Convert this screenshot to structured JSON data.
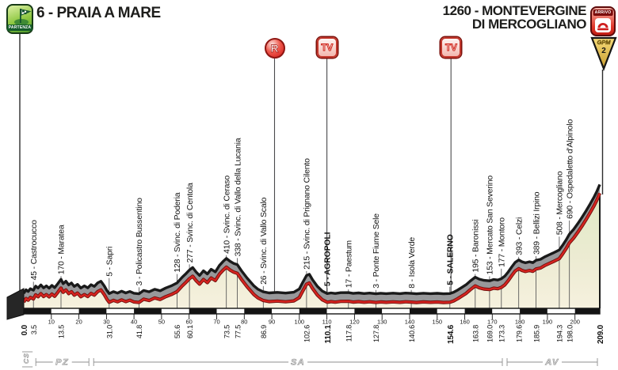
{
  "header": {
    "start": {
      "stage_ref": "6 - PRAIA A MARE",
      "badge": "PARTENZA"
    },
    "finish": {
      "title_line1": "1260 - MONTEVERGINE",
      "title_line2": "DI MERCOGLIANO",
      "badge": "ARRIVO"
    },
    "gpm_badge": {
      "label": "GPM",
      "category": "2"
    }
  },
  "route_markers": [
    {
      "type": "feed_zone",
      "label": "R",
      "km": 91
    },
    {
      "type": "tv",
      "label": "TV",
      "km": 110
    },
    {
      "type": "tv",
      "label": "TV",
      "km": 155
    }
  ],
  "colors": {
    "profile_red": "#d6231f",
    "profile_red_outline": "#6d100d",
    "band_gray": "#98989a",
    "outline_black": "#1a1a1a",
    "fill_cream": "#f6f1de",
    "fill_green_high": "#dfeac5",
    "leader_line": "#4a4a4c",
    "province_gray": "#8f8f8f",
    "start_green": "#5fae3a",
    "finish_red": "#d8261f",
    "gpm_gold": "#e8c24a"
  },
  "chart_data": {
    "type": "area",
    "x_unit": "km",
    "xlim": [
      0,
      209
    ],
    "total_km_text": "209.0",
    "finish_elevation_m": 1260,
    "axis_ticks_km": [
      10,
      20,
      30,
      40,
      50,
      60,
      70,
      80,
      90,
      100,
      110,
      120,
      130,
      140,
      150,
      160,
      170,
      180,
      190,
      200
    ],
    "waypoints": [
      {
        "km": 0.0,
        "km_text": "0.0",
        "elev": 0,
        "label": "",
        "bold": true
      },
      {
        "km": 3.5,
        "km_text": "3.5",
        "elev": 45,
        "label": "45 - Castrocucco",
        "bold": false
      },
      {
        "km": 13.5,
        "km_text": "13.5",
        "elev": 170,
        "label": "170 - Maratea",
        "bold": false
      },
      {
        "km": 31.0,
        "km_text": "31.0",
        "elev": 5,
        "label": "5 - Sapri",
        "bold": false
      },
      {
        "km": 41.8,
        "km_text": "41.8",
        "elev": 3,
        "label": "3 - Policastro Bussentino",
        "bold": false
      },
      {
        "km": 55.6,
        "km_text": "55.6",
        "elev": 128,
        "label": "128 - Svinc. di Poderia",
        "bold": false
      },
      {
        "km": 60.1,
        "km_text": "60.1",
        "elev": 277,
        "label": "277 - Svinc. di Centola",
        "bold": false
      },
      {
        "km": 73.5,
        "km_text": "73.5",
        "elev": 410,
        "label": "410 - Svinc. di Ceraso",
        "bold": false
      },
      {
        "km": 77.5,
        "km_text": "77.5",
        "elev": 338,
        "label": "338 - Svinc. di Vallo della Lucania",
        "bold": false
      },
      {
        "km": 86.9,
        "km_text": "86.9",
        "elev": 26,
        "label": "26 - Svinc. di Vallo Scalo",
        "bold": false
      },
      {
        "km": 102.6,
        "km_text": "102.6",
        "elev": 215,
        "label": "215 - Svinc. di Prignano Cilento",
        "bold": false
      },
      {
        "km": 110.1,
        "km_text": "110.1",
        "elev": 5,
        "label": "5 - AGROPOLI",
        "bold": true
      },
      {
        "km": 117.8,
        "km_text": "117.8",
        "elev": 17,
        "label": "17 - Paestum",
        "bold": false
      },
      {
        "km": 127.8,
        "km_text": "127.8",
        "elev": 3,
        "label": "3 - Ponte Fiume Sele",
        "bold": false
      },
      {
        "km": 140.6,
        "km_text": "140.6",
        "elev": 8,
        "label": "8 - Isola Verde",
        "bold": false
      },
      {
        "km": 154.6,
        "km_text": "154.6",
        "elev": 5,
        "label": "5 - SALERNO",
        "bold": true
      },
      {
        "km": 163.8,
        "km_text": "163.8",
        "elev": 195,
        "label": "195 - Baronissi",
        "bold": false
      },
      {
        "km": 169.0,
        "km_text": "169.0",
        "elev": 153,
        "label": "153 - Mercato San Severino",
        "bold": false
      },
      {
        "km": 173.3,
        "km_text": "173.3",
        "elev": 177,
        "label": "177 - Montoro",
        "bold": false
      },
      {
        "km": 179.6,
        "km_text": "179.6",
        "elev": 393,
        "label": "393 - Celzi",
        "bold": false
      },
      {
        "km": 185.9,
        "km_text": "185.9",
        "elev": 389,
        "label": "389 - Bellizi Irpino",
        "bold": false
      },
      {
        "km": 194.3,
        "km_text": "194.3",
        "elev": 508,
        "label": "508 - Mercogliano",
        "bold": false
      },
      {
        "km": 198.0,
        "km_text": "198.0",
        "elev": 690,
        "label": "690 - Ospedaletto d'Alpinolo",
        "bold": false
      },
      {
        "km": 209.0,
        "km_text": "209.0",
        "elev": 1260,
        "label": "",
        "bold": true
      }
    ],
    "provinces": [
      {
        "code": "CS",
        "from_km": 0,
        "to_km": 3.5
      },
      {
        "code": "PZ",
        "from_km": 3.5,
        "to_km": 24.5
      },
      {
        "code": "SA",
        "from_km": 24.5,
        "to_km": 174.5
      },
      {
        "code": "AV",
        "from_km": 174.5,
        "to_km": 209
      }
    ],
    "profile_points": [
      [
        0,
        8
      ],
      [
        0.8,
        50
      ],
      [
        1.6,
        30
      ],
      [
        2.4,
        62
      ],
      [
        3.5,
        45
      ],
      [
        4.3,
        92
      ],
      [
        5.2,
        70
      ],
      [
        6.2,
        105
      ],
      [
        7.2,
        72
      ],
      [
        8.2,
        95
      ],
      [
        9.2,
        68
      ],
      [
        10.2,
        100
      ],
      [
        11.2,
        75
      ],
      [
        12.3,
        118
      ],
      [
        13.5,
        170
      ],
      [
        14.3,
        120
      ],
      [
        15.3,
        148
      ],
      [
        16.3,
        105
      ],
      [
        17.3,
        128
      ],
      [
        18.3,
        88
      ],
      [
        19.5,
        112
      ],
      [
        20.7,
        70
      ],
      [
        22,
        95
      ],
      [
        23.2,
        72
      ],
      [
        24.4,
        108
      ],
      [
        25.6,
        88
      ],
      [
        26.8,
        128
      ],
      [
        28,
        148
      ],
      [
        29.2,
        95
      ],
      [
        30.2,
        40
      ],
      [
        31,
        6
      ],
      [
        32.5,
        28
      ],
      [
        34,
        12
      ],
      [
        35.5,
        34
      ],
      [
        37,
        14
      ],
      [
        38.5,
        30
      ],
      [
        40,
        10
      ],
      [
        41.8,
        4
      ],
      [
        43.5,
        42
      ],
      [
        45.5,
        26
      ],
      [
        47.5,
        55
      ],
      [
        49.5,
        38
      ],
      [
        51.5,
        70
      ],
      [
        53.5,
        95
      ],
      [
        55.6,
        128
      ],
      [
        57.5,
        195
      ],
      [
        59,
        240
      ],
      [
        60.1,
        277
      ],
      [
        61.3,
        305
      ],
      [
        62.5,
        255
      ],
      [
        63.8,
        215
      ],
      [
        65.2,
        268
      ],
      [
        66.6,
        232
      ],
      [
        68,
        285
      ],
      [
        69.5,
        255
      ],
      [
        71,
        330
      ],
      [
        72.3,
        375
      ],
      [
        73.5,
        410
      ],
      [
        74.8,
        378
      ],
      [
        76.2,
        352
      ],
      [
        77.5,
        338
      ],
      [
        79,
        268
      ],
      [
        81,
        185
      ],
      [
        83.5,
        95
      ],
      [
        85,
        55
      ],
      [
        86.9,
        26
      ],
      [
        89,
        14
      ],
      [
        92,
        20
      ],
      [
        95,
        12
      ],
      [
        98,
        22
      ],
      [
        100,
        60
      ],
      [
        101.3,
        140
      ],
      [
        102.6,
        215
      ],
      [
        103.6,
        228
      ],
      [
        104.8,
        165
      ],
      [
        106.5,
        90
      ],
      [
        108.3,
        35
      ],
      [
        110.1,
        6
      ],
      [
        111.5,
        14
      ],
      [
        113,
        7
      ],
      [
        115,
        16
      ],
      [
        117.8,
        17
      ],
      [
        119.5,
        8
      ],
      [
        121.5,
        14
      ],
      [
        123.5,
        6
      ],
      [
        125.5,
        12
      ],
      [
        127.8,
        4
      ],
      [
        129.5,
        10
      ],
      [
        131.5,
        5
      ],
      [
        134,
        11
      ],
      [
        136.5,
        5
      ],
      [
        138.5,
        12
      ],
      [
        140.6,
        8
      ],
      [
        142.5,
        4
      ],
      [
        145,
        10
      ],
      [
        147.5,
        5
      ],
      [
        150,
        9
      ],
      [
        152.3,
        4
      ],
      [
        154.6,
        6
      ],
      [
        156,
        22
      ],
      [
        157.5,
        48
      ],
      [
        159,
        78
      ],
      [
        160.5,
        108
      ],
      [
        162,
        150
      ],
      [
        163.8,
        195
      ],
      [
        165.3,
        172
      ],
      [
        167,
        158
      ],
      [
        169,
        153
      ],
      [
        170.5,
        168
      ],
      [
        172,
        162
      ],
      [
        173.3,
        177
      ],
      [
        174.5,
        205
      ],
      [
        175.8,
        255
      ],
      [
        177,
        310
      ],
      [
        178.3,
        365
      ],
      [
        179.6,
        393
      ],
      [
        180.8,
        372
      ],
      [
        182,
        360
      ],
      [
        183.5,
        372
      ],
      [
        184.7,
        362
      ],
      [
        185.9,
        389
      ],
      [
        187.5,
        400
      ],
      [
        189,
        428
      ],
      [
        190.5,
        450
      ],
      [
        192,
        472
      ],
      [
        194.3,
        508
      ],
      [
        195.5,
        560
      ],
      [
        196.8,
        625
      ],
      [
        198,
        690
      ],
      [
        199.5,
        745
      ],
      [
        201,
        810
      ],
      [
        202.5,
        880
      ],
      [
        204,
        955
      ],
      [
        205.5,
        1035
      ],
      [
        207,
        1120
      ],
      [
        208,
        1185
      ],
      [
        209,
        1260
      ]
    ]
  }
}
